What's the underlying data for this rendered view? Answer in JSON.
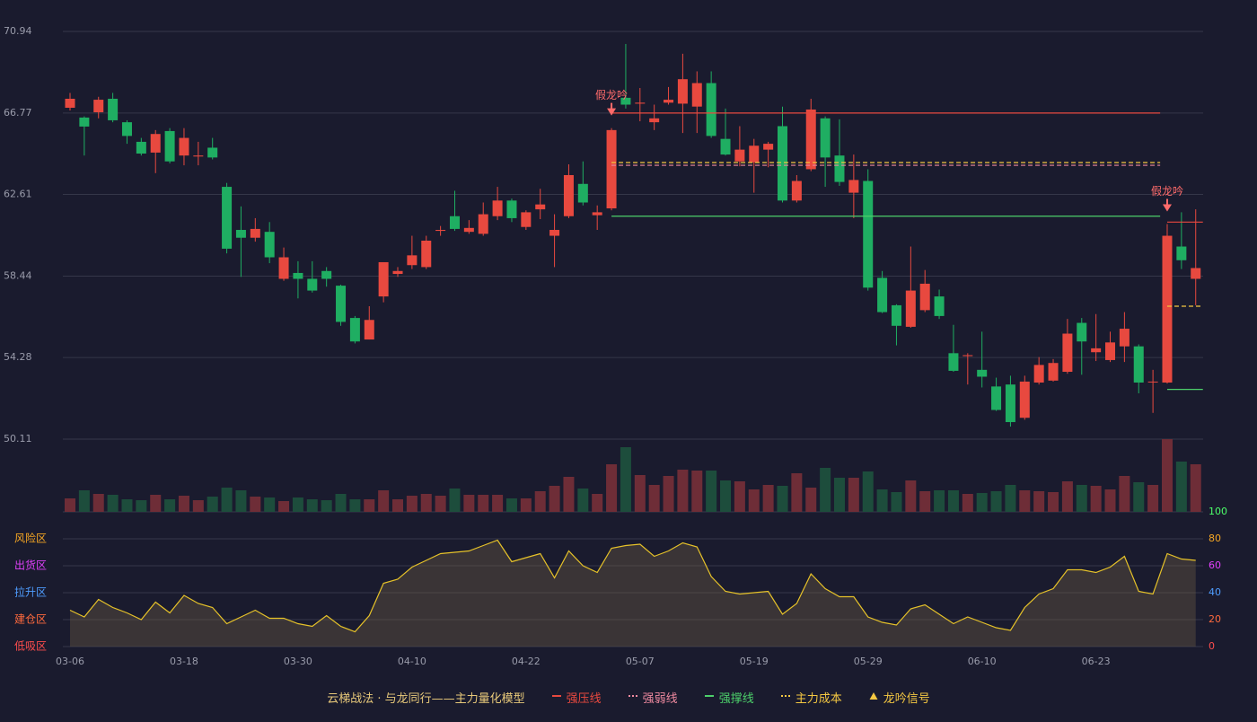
{
  "chart_data": {
    "type": "candlestick",
    "categories": [
      "03-06",
      null,
      null,
      null,
      null,
      null,
      null,
      null,
      "03-18",
      null,
      null,
      null,
      null,
      null,
      null,
      null,
      "03-30",
      null,
      null,
      null,
      null,
      null,
      null,
      null,
      "04-10",
      null,
      null,
      null,
      null,
      null,
      null,
      null,
      "04-22",
      null,
      null,
      null,
      null,
      null,
      null,
      null,
      "05-07",
      null,
      null,
      null,
      null,
      null,
      null,
      null,
      "05-19",
      null,
      null,
      null,
      null,
      null,
      null,
      null,
      "05-29",
      null,
      null,
      null,
      null,
      null,
      null,
      null,
      "06-10",
      null,
      null,
      null,
      null,
      null,
      null,
      null,
      "06-23",
      null,
      null,
      null,
      null,
      null,
      null,
      null
    ],
    "open": [
      67.04,
      66.54,
      66.81,
      67.5,
      66.3,
      65.3,
      64.75,
      65.85,
      64.6,
      64.55,
      65.0,
      63.0,
      60.8,
      60.4,
      60.7,
      58.3,
      58.6,
      58.3,
      58.7,
      57.95,
      56.3,
      55.2,
      57.4,
      58.55,
      59.0,
      58.9,
      60.75,
      61.5,
      60.7,
      60.6,
      61.5,
      62.3,
      60.95,
      61.85,
      60.5,
      61.5,
      63.15,
      61.55,
      61.9,
      67.55,
      67.25,
      66.3,
      67.3,
      67.25,
      67.1,
      68.3,
      65.45,
      64.3,
      64.25,
      64.9,
      66.1,
      62.3,
      63.9,
      66.5,
      64.6,
      62.7,
      63.3,
      58.35,
      56.95,
      55.85,
      56.7,
      57.4,
      54.5,
      54.35,
      53.65,
      52.8,
      52.9,
      51.2,
      53.0,
      53.1,
      53.55,
      56.05,
      54.55,
      54.15,
      54.85,
      54.85,
      53.05,
      53.0,
      59.95,
      58.3
    ],
    "close": [
      67.5,
      66.08,
      67.45,
      66.4,
      65.6,
      64.7,
      65.7,
      64.3,
      65.5,
      64.6,
      64.5,
      59.84,
      60.4,
      60.85,
      59.4,
      59.4,
      58.3,
      57.7,
      58.3,
      56.1,
      55.1,
      56.2,
      59.15,
      58.7,
      59.5,
      60.25,
      60.8,
      60.85,
      60.9,
      61.6,
      62.3,
      61.4,
      61.7,
      62.1,
      60.8,
      63.6,
      62.2,
      61.7,
      65.9,
      67.2,
      67.3,
      66.5,
      67.45,
      68.5,
      68.3,
      65.6,
      64.65,
      64.9,
      65.1,
      65.2,
      62.3,
      63.3,
      66.95,
      64.5,
      63.25,
      63.35,
      57.85,
      56.6,
      55.9,
      57.7,
      58.05,
      56.4,
      53.6,
      54.4,
      53.3,
      51.6,
      50.98,
      53.05,
      53.9,
      54.0,
      55.5,
      55.1,
      54.75,
      55.05,
      55.75,
      53.0,
      53.05,
      60.5,
      59.25,
      58.85
    ],
    "high": [
      67.8,
      66.6,
      67.6,
      67.8,
      66.4,
      65.5,
      65.9,
      66.0,
      66.0,
      65.3,
      65.5,
      63.2,
      62.0,
      61.4,
      61.2,
      59.9,
      59.2,
      59.2,
      58.9,
      58.0,
      56.4,
      56.9,
      59.15,
      58.9,
      60.5,
      60.5,
      61.0,
      62.8,
      61.3,
      62.2,
      63.0,
      62.4,
      61.8,
      62.9,
      61.6,
      64.15,
      64.3,
      62.05,
      66.0,
      70.3,
      68.05,
      67.2,
      68.1,
      69.8,
      68.9,
      68.9,
      67.0,
      66.1,
      65.45,
      65.3,
      67.1,
      63.6,
      67.5,
      66.6,
      66.45,
      64.65,
      63.9,
      58.7,
      57.0,
      59.95,
      58.75,
      57.75,
      55.95,
      54.5,
      55.6,
      53.25,
      53.35,
      53.35,
      54.3,
      54.2,
      56.25,
      56.3,
      56.5,
      55.6,
      56.6,
      54.95,
      53.65,
      61.1,
      61.7,
      61.85
    ],
    "low": [
      66.9,
      64.6,
      66.5,
      66.3,
      65.2,
      64.6,
      63.7,
      64.2,
      64.1,
      64.1,
      64.4,
      59.6,
      58.4,
      60.2,
      59.1,
      58.2,
      57.3,
      57.6,
      57.9,
      55.9,
      55.0,
      55.2,
      57.1,
      58.4,
      58.8,
      58.8,
      60.5,
      60.75,
      60.6,
      60.5,
      61.3,
      61.2,
      60.8,
      61.35,
      58.9,
      61.4,
      62.05,
      60.8,
      61.8,
      67.0,
      66.35,
      65.9,
      67.2,
      65.75,
      65.75,
      65.5,
      64.6,
      64.05,
      62.7,
      64.0,
      62.2,
      62.2,
      63.8,
      63.0,
      63.05,
      61.4,
      57.7,
      56.55,
      54.9,
      55.8,
      56.6,
      56.25,
      53.55,
      52.9,
      52.75,
      51.55,
      50.75,
      51.1,
      52.9,
      53.05,
      53.45,
      53.4,
      54.1,
      54.05,
      54.05,
      52.45,
      51.45,
      52.95,
      58.8,
      56.95
    ],
    "volume": [
      15,
      24,
      20,
      19,
      14,
      13,
      19,
      14,
      18,
      13,
      17,
      27,
      24,
      17,
      16,
      12,
      16,
      14,
      13,
      20,
      14,
      14,
      24,
      14,
      18,
      20,
      18,
      26,
      19,
      19,
      19,
      15,
      15,
      23,
      29,
      39,
      26,
      20,
      53,
      72,
      41,
      30,
      40,
      47,
      46,
      46,
      35,
      34,
      25,
      30,
      29,
      43,
      27,
      49,
      38,
      38,
      45,
      25,
      22,
      35,
      23,
      24,
      24,
      20,
      21,
      23,
      30,
      24,
      23,
      22,
      34,
      30,
      29,
      25,
      40,
      33,
      30,
      81,
      56,
      53
    ],
    "oscillator": [
      27,
      22,
      35,
      29,
      25,
      20,
      33,
      25,
      38,
      32,
      29,
      17,
      22,
      27,
      21,
      21,
      17,
      15,
      23,
      15,
      11,
      23,
      47,
      50,
      59,
      64,
      69,
      70,
      71,
      75,
      79,
      63,
      66,
      69,
      51,
      71,
      60,
      55,
      73,
      75,
      76,
      67,
      71,
      77,
      74,
      52,
      41,
      39,
      40,
      41,
      24,
      32,
      54,
      43,
      37,
      37,
      22,
      18,
      16,
      28,
      31,
      24,
      17,
      22,
      18,
      14,
      12,
      29,
      39,
      43,
      57,
      57,
      55,
      59,
      67,
      41,
      39,
      69,
      65,
      64
    ],
    "up_color": "#e8493f",
    "down_color": "#1fae62",
    "up_volume_color": "#6e2d37",
    "down_volume_color": "#1d4d3c",
    "oscillator_color": "#e6c229",
    "ylim": [
      50.11,
      70.94
    ],
    "yticks": [
      50.11,
      54.28,
      58.44,
      62.61,
      66.77,
      70.94
    ],
    "y2lim": [
      0,
      100
    ],
    "y2ticks": [
      0,
      20,
      40,
      60,
      80,
      100
    ],
    "y2tick_colors": [
      "#ff4d4d",
      "#ff6a3d",
      "#4f9dff",
      "#e040fb",
      "#f5a623",
      "#4cff6a"
    ],
    "zones": [
      {
        "name": "低吸区",
        "color": "#ff4d4d"
      },
      {
        "name": "建仓区",
        "color": "#ff6a3d"
      },
      {
        "name": "拉升区",
        "color": "#4f9dff"
      },
      {
        "name": "出货区",
        "color": "#e040fb"
      },
      {
        "name": "风险区",
        "color": "#f5a623"
      }
    ],
    "grid": true,
    "legend_title": "云梯战法 · 与龙同行——主力量化模型",
    "overlays": [
      {
        "name": "强压线",
        "color": "#e8493f",
        "dashed": false,
        "segments": [
          {
            "value": 66.77,
            "from": 38,
            "to": 76
          },
          {
            "value": 61.2,
            "from": 77,
            "to": 79
          }
        ]
      },
      {
        "name": "强弱线",
        "color": "#f08aa0",
        "dashed": true,
        "segments": [
          {
            "value": 64.1,
            "from": 38,
            "to": 76
          }
        ]
      },
      {
        "name": "强撑线",
        "color": "#4ccf6a",
        "dashed": false,
        "segments": [
          {
            "value": 61.5,
            "from": 38,
            "to": 76
          },
          {
            "value": 52.65,
            "from": 77,
            "to": 79
          }
        ]
      },
      {
        "name": "主力成本",
        "color": "#f5c842",
        "dashed": true,
        "segments": [
          {
            "value": 64.24,
            "from": 38,
            "to": 76
          },
          {
            "value": 56.9,
            "from": 77,
            "to": 79
          }
        ]
      }
    ],
    "signals": {
      "name": "龙吟信号",
      "legend_color": "#f5c842",
      "color": "#ff6b6b",
      "label": "假龙吟",
      "points": [
        38,
        77
      ]
    }
  }
}
